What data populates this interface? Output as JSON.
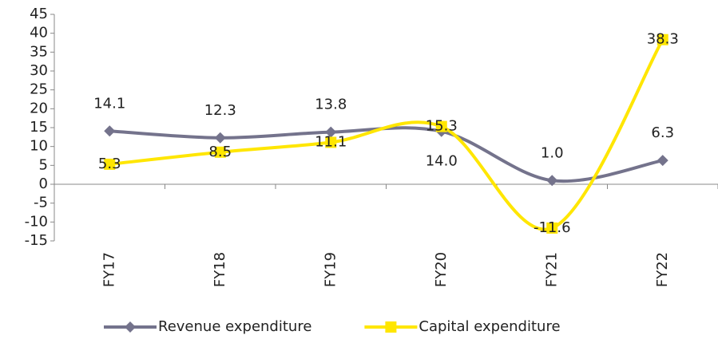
{
  "chart_data": {
    "type": "line",
    "categories": [
      "FY17",
      "FY18",
      "FY19",
      "FY20",
      "FY21",
      "FY22"
    ],
    "series": [
      {
        "name": "Revenue expenditure",
        "color": "#74738c",
        "marker": "diamond",
        "values": [
          14.1,
          12.3,
          13.8,
          14.0,
          1.0,
          6.3
        ],
        "value_labels": [
          "14.1",
          "12.3",
          "13.8",
          "14.0",
          "1.0",
          "6.3"
        ]
      },
      {
        "name": "Capital expenditure",
        "color": "#ffe600",
        "marker": "square",
        "values": [
          5.3,
          8.5,
          11.1,
          15.3,
          -11.6,
          38.3
        ],
        "value_labels": [
          "5.3",
          "8.5",
          "11.1",
          "15.3",
          "-11.6",
          "38.3"
        ]
      }
    ],
    "ylim": [
      -15,
      45
    ],
    "yticks": [
      -15,
      -10,
      -5,
      0,
      5,
      10,
      15,
      20,
      25,
      30,
      35,
      40,
      45
    ],
    "smooth": true,
    "grid": false,
    "legend": "bottom"
  }
}
